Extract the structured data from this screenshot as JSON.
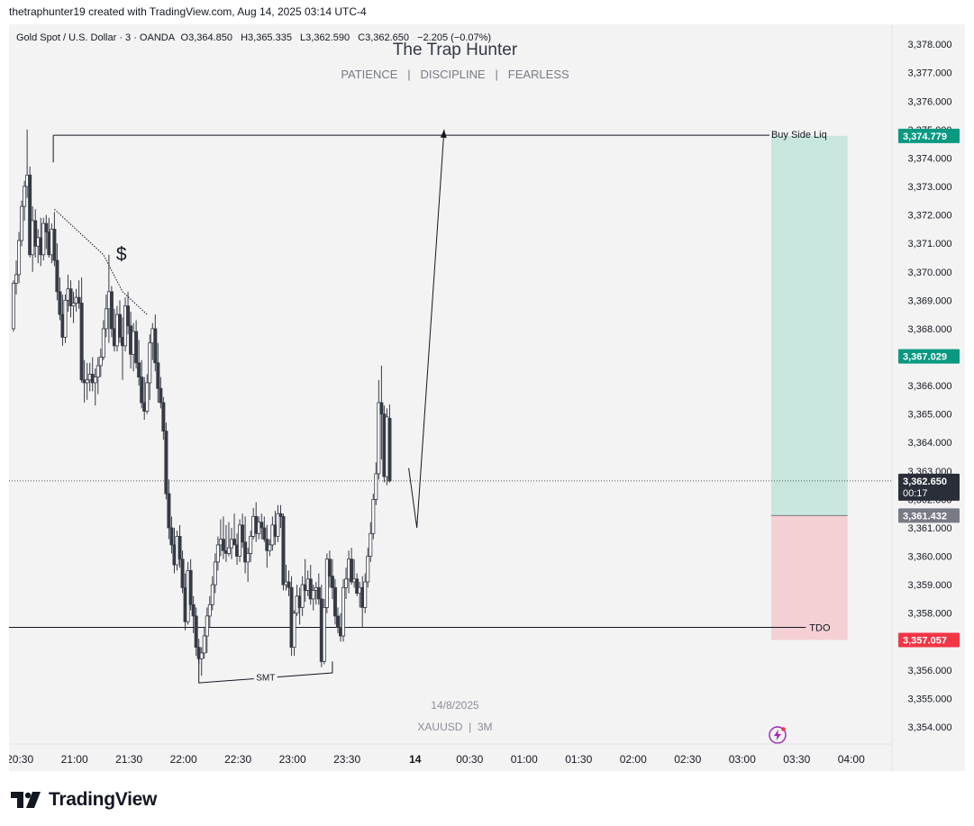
{
  "credit": "thetraphunter19 created with TradingView.com, Aug 14, 2025 03:14 UTC-4",
  "legend": {
    "symbol": "Gold Spot / U.S. Dollar · 3 · OANDA",
    "open": "O3,364.850",
    "high": "H3,365.335",
    "low": "L3,362.590",
    "close": "C3,362.650",
    "change": "−2.205 (−0.07%)"
  },
  "watermark": {
    "title": "The Trap Hunter",
    "subtitle": "PATIENCE   |   DISCIPLINE   |   FEARLESS",
    "date": "14/8/2025",
    "symbol": "XAUUSD  |  3M"
  },
  "annotations": {
    "buy_side": "Buy Side Liq",
    "tdo": "TDO",
    "smt": "SMT",
    "dollar": "$"
  },
  "footer": {
    "logo_text": "TradingView"
  },
  "colors": {
    "target_zone": "#c8e6dd",
    "stop_zone": "#f4d0d4",
    "target_label": "#089981",
    "stop_label": "#f23645",
    "entry_label": "#787b86",
    "price_label": "#2a2e39",
    "up_candle": "#ffffff",
    "down_candle": "#363a45"
  },
  "chart_data": {
    "type": "candlestick",
    "symbol": "XAUUSD",
    "timeframe": "3",
    "ylim": [
      3353.4,
      3378.7
    ],
    "y_ticks": [
      "3,354.000",
      "3,355.000",
      "3,356.000",
      "3,357.000",
      "3,358.000",
      "3,359.000",
      "3,360.000",
      "3,361.000",
      "3,362.000",
      "3,363.000",
      "3,364.000",
      "3,365.000",
      "3,366.000",
      "3,367.000",
      "3,368.000",
      "3,369.000",
      "3,370.000",
      "3,371.000",
      "3,372.000",
      "3,373.000",
      "3,374.000",
      "3,375.000",
      "3,376.000",
      "3,377.000",
      "3,378.000"
    ],
    "x_ticks": [
      "20:30",
      "21:00",
      "21:30",
      "22:00",
      "22:30",
      "23:00",
      "23:30",
      "14",
      "00:30",
      "01:00",
      "01:30",
      "02:00",
      "02:30",
      "03:00",
      "03:30",
      "04:00"
    ],
    "price_labels": {
      "target": "3,374.779",
      "take_profit": "3,367.029",
      "current": "3,362.650",
      "countdown": "00:17",
      "entry": "3,361.432",
      "stop": "3,357.057"
    },
    "levels": {
      "buy_side_liq": 3374.8,
      "tdo": 3357.5,
      "current_price": 3362.65
    },
    "position": {
      "entry": 3361.432,
      "target": 3374.779,
      "stop": 3357.057
    },
    "candles": [
      [
        3368,
        3369.7,
        3367.9,
        3369.6
      ],
      [
        3369.6,
        3370.4,
        3369.2,
        3369.9
      ],
      [
        3369.9,
        3371.4,
        3369.6,
        3371.1
      ],
      [
        3371.1,
        3372.5,
        3370.9,
        3372.3
      ],
      [
        3372.3,
        3373.2,
        3371.8,
        3373
      ],
      [
        3373,
        3375,
        3372.6,
        3373.4
      ],
      [
        3373.4,
        3373.7,
        3370.5,
        3370.6
      ],
      [
        3370.6,
        3372.3,
        3370,
        3371.8
      ],
      [
        3371.8,
        3372.2,
        3370.5,
        3370.9
      ],
      [
        3370.9,
        3371.5,
        3370.3,
        3371.2
      ],
      [
        3371.2,
        3371.9,
        3370.2,
        3370.6
      ],
      [
        3370.6,
        3371.9,
        3370.4,
        3371.7
      ],
      [
        3371.7,
        3372,
        3370.8,
        3371.4
      ],
      [
        3371.4,
        3371.9,
        3370.5,
        3370.6
      ],
      [
        3370.6,
        3371.7,
        3370.3,
        3371.5
      ],
      [
        3371.5,
        3372.1,
        3370.2,
        3370.4
      ],
      [
        3370.4,
        3371,
        3369,
        3369.3
      ],
      [
        3369.3,
        3369.8,
        3368.3,
        3368.5
      ],
      [
        3368.5,
        3369.2,
        3367.4,
        3367.7
      ],
      [
        3367.7,
        3369.2,
        3367.5,
        3369
      ],
      [
        3369,
        3369.9,
        3368.6,
        3369.4
      ],
      [
        3369.4,
        3369.7,
        3368.4,
        3368.8
      ],
      [
        3368.8,
        3369.3,
        3368.2,
        3368.9
      ],
      [
        3368.9,
        3369.4,
        3368.6,
        3369.1
      ],
      [
        3369.1,
        3369.7,
        3368.7,
        3368.9
      ],
      [
        3368.9,
        3369.8,
        3366.1,
        3366.2
      ],
      [
        3366.2,
        3366.9,
        3365.4,
        3366.1
      ],
      [
        3366.1,
        3366.8,
        3365.5,
        3366.2
      ],
      [
        3366.2,
        3366.8,
        3365.8,
        3366.4
      ],
      [
        3366.4,
        3367,
        3365.8,
        3366.1
      ],
      [
        3366.1,
        3366.6,
        3365.3,
        3366.3
      ],
      [
        3366.3,
        3367,
        3365.7,
        3366.7
      ],
      [
        3366.7,
        3367.3,
        3366.3,
        3367
      ],
      [
        3367,
        3368.3,
        3366.9,
        3368
      ],
      [
        3368,
        3369.2,
        3367.7,
        3368.7
      ],
      [
        3368.7,
        3370.6,
        3367.5,
        3369.3
      ],
      [
        3369.3,
        3369.5,
        3367.7,
        3368
      ],
      [
        3368,
        3368.7,
        3367.2,
        3367.4
      ],
      [
        3367.4,
        3368.8,
        3367.2,
        3368.5
      ],
      [
        3368.5,
        3369,
        3367.5,
        3367.7
      ],
      [
        3367.7,
        3368.4,
        3366.2,
        3367.4
      ],
      [
        3367.4,
        3369.1,
        3367.2,
        3368.8
      ],
      [
        3368.8,
        3369.3,
        3367.8,
        3368.1
      ],
      [
        3368.1,
        3368.6,
        3366.6,
        3367.1
      ],
      [
        3367.1,
        3368.2,
        3366.5,
        3367.9
      ],
      [
        3367.9,
        3368.3,
        3366.6,
        3366.8
      ],
      [
        3366.8,
        3367.6,
        3366,
        3366.3
      ],
      [
        3366.3,
        3366.9,
        3365.2,
        3365.4
      ],
      [
        3365.4,
        3366.3,
        3364.8,
        3365.1
      ],
      [
        3365.1,
        3366.4,
        3365,
        3366.1
      ],
      [
        3366.1,
        3367.8,
        3365.5,
        3367.5
      ],
      [
        3367.5,
        3368.2,
        3366.9,
        3368
      ],
      [
        3368,
        3368.5,
        3366.5,
        3366.8
      ],
      [
        3366.8,
        3367.5,
        3365.4,
        3365.9
      ],
      [
        3365.9,
        3366.3,
        3365.2,
        3365.4
      ],
      [
        3365.4,
        3365.6,
        3364.1,
        3364.4
      ],
      [
        3364.4,
        3364.7,
        3362,
        3362.2
      ],
      [
        3362.2,
        3362.7,
        3360.6,
        3361
      ],
      [
        3361,
        3361.4,
        3360.1,
        3360.4
      ],
      [
        3360.4,
        3361,
        3359.4,
        3359.7
      ],
      [
        3359.7,
        3360.9,
        3359.5,
        3360.7
      ],
      [
        3360.7,
        3361.1,
        3359.6,
        3359.9
      ],
      [
        3359.9,
        3360.2,
        3358.7,
        3358.9
      ],
      [
        3358.9,
        3359.4,
        3357.4,
        3357.7
      ],
      [
        3357.7,
        3359.8,
        3357.6,
        3359.5
      ],
      [
        3359.5,
        3359.9,
        3358.1,
        3358.3
      ],
      [
        3358.3,
        3358.6,
        3357.3,
        3357.9
      ],
      [
        3357.9,
        3358.2,
        3356.5,
        3356.8
      ],
      [
        3356.8,
        3357.1,
        3356.2,
        3356.4
      ],
      [
        3356.4,
        3356.8,
        3355.8,
        3356.6
      ],
      [
        3356.6,
        3357.5,
        3356.4,
        3357.2
      ],
      [
        3357.2,
        3358.2,
        3356.6,
        3357.9
      ],
      [
        3357.9,
        3358.6,
        3357.5,
        3358.3
      ],
      [
        3358.3,
        3359.3,
        3358.1,
        3359
      ],
      [
        3359,
        3360.1,
        3358.7,
        3359.8
      ],
      [
        3359.8,
        3360.7,
        3359.5,
        3360.4
      ],
      [
        3360.4,
        3361.3,
        3360,
        3360.6
      ],
      [
        3360.6,
        3361.4,
        3359.9,
        3360.2
      ],
      [
        3360.2,
        3361.1,
        3359.8,
        3360.1
      ],
      [
        3360.1,
        3361.2,
        3360,
        3360.3
      ],
      [
        3360.3,
        3361,
        3359.9,
        3360.6
      ],
      [
        3360.6,
        3361.5,
        3360.4,
        3360.4
      ],
      [
        3360.4,
        3360.8,
        3359.7,
        3360
      ],
      [
        3360,
        3361.3,
        3359.8,
        3361.1
      ],
      [
        3361.1,
        3361.5,
        3360.3,
        3360.5
      ],
      [
        3360.5,
        3361.4,
        3359.4,
        3359.8
      ],
      [
        3359.8,
        3360.3,
        3359.1,
        3360.1
      ],
      [
        3360.1,
        3360.9,
        3359.8,
        3360.7
      ],
      [
        3360.7,
        3361.7,
        3360.6,
        3361.4
      ],
      [
        3361.4,
        3361.9,
        3360.5,
        3360.8
      ],
      [
        3360.8,
        3361.4,
        3360.6,
        3361.2
      ],
      [
        3361.2,
        3361.5,
        3360.6,
        3361
      ],
      [
        3361,
        3361.4,
        3360.5,
        3360.6
      ],
      [
        3360.6,
        3361.1,
        3359.6,
        3360.2
      ],
      [
        3360.2,
        3360.6,
        3360,
        3360.4
      ],
      [
        3360.4,
        3361.4,
        3360.2,
        3361.1
      ],
      [
        3361.1,
        3361.6,
        3360.4,
        3360.7
      ],
      [
        3360.7,
        3361.8,
        3360.5,
        3361.5
      ],
      [
        3361.5,
        3361.8,
        3361,
        3361.4
      ],
      [
        3361.4,
        3361.5,
        3358.8,
        3359
      ],
      [
        3359,
        3359.7,
        3358.8,
        3359.1
      ],
      [
        3359.1,
        3359.5,
        3358.6,
        3358.9
      ],
      [
        3358.9,
        3359.3,
        3356.5,
        3356.8
      ],
      [
        3356.8,
        3358.1,
        3356.5,
        3358
      ],
      [
        3358,
        3359,
        3357.9,
        3358.6
      ],
      [
        3358.6,
        3358.9,
        3357.6,
        3358.2
      ],
      [
        3358.2,
        3359.3,
        3357.9,
        3359
      ],
      [
        3359,
        3359.9,
        3358.4,
        3358.8
      ],
      [
        3358.8,
        3359.5,
        3358.6,
        3359.2
      ],
      [
        3359.2,
        3359.7,
        3358.3,
        3358.5
      ],
      [
        3358.5,
        3359,
        3358.1,
        3358.8
      ],
      [
        3358.8,
        3359.1,
        3358.3,
        3358.9
      ],
      [
        3358.9,
        3359.4,
        3358.3,
        3358.5
      ],
      [
        3358.5,
        3359,
        3356.1,
        3356.3
      ],
      [
        3356.3,
        3358.5,
        3356.2,
        3358.2
      ],
      [
        3358.2,
        3360.1,
        3358,
        3359.9
      ],
      [
        3359.9,
        3360.2,
        3358.9,
        3359.3
      ],
      [
        3359.3,
        3359.9,
        3358.5,
        3358.9
      ],
      [
        3358.9,
        3359.2,
        3357.6,
        3357.9
      ],
      [
        3357.9,
        3358.2,
        3357.3,
        3357.5
      ],
      [
        3357.5,
        3358,
        3357,
        3357.2
      ],
      [
        3357.2,
        3359.2,
        3357,
        3358.9
      ],
      [
        3358.9,
        3359.6,
        3358.5,
        3359.2
      ],
      [
        3359.2,
        3360.2,
        3358.7,
        3359.9
      ],
      [
        3359.9,
        3360.3,
        3359,
        3359.1
      ],
      [
        3359.1,
        3359.9,
        3358.9,
        3359.2
      ],
      [
        3359.2,
        3359.4,
        3358.6,
        3358.7
      ],
      [
        3358.7,
        3359.1,
        3358.2,
        3358.9
      ],
      [
        3358.9,
        3359.3,
        3357.5,
        3358.2
      ],
      [
        3358.2,
        3359.4,
        3358,
        3359.1
      ],
      [
        3359.1,
        3360.3,
        3358.9,
        3360
      ],
      [
        3360,
        3361.2,
        3359.8,
        3360.8
      ],
      [
        3360.8,
        3362.2,
        3360.6,
        3362
      ],
      [
        3362,
        3363.3,
        3361.8,
        3362.9
      ],
      [
        3362.9,
        3366.2,
        3362.7,
        3365.4
      ],
      [
        3365.4,
        3366.7,
        3363.4,
        3365
      ],
      [
        3365,
        3365.3,
        3362.6,
        3362.8
      ],
      [
        3362.8,
        3365.2,
        3362.5,
        3364.9
      ],
      [
        3364.85,
        3365.335,
        3362.59,
        3362.65
      ]
    ],
    "x_tick_indices": [
      5,
      25,
      45,
      65,
      85,
      105,
      125,
      150,
      170,
      190,
      210,
      230,
      250,
      270,
      290,
      310
    ],
    "last_candle_index": 139,
    "zone_start_index": 278,
    "zone_end_index": 306,
    "buy_side_line_start_index": 5,
    "tdo_line_end_index": 292
  }
}
